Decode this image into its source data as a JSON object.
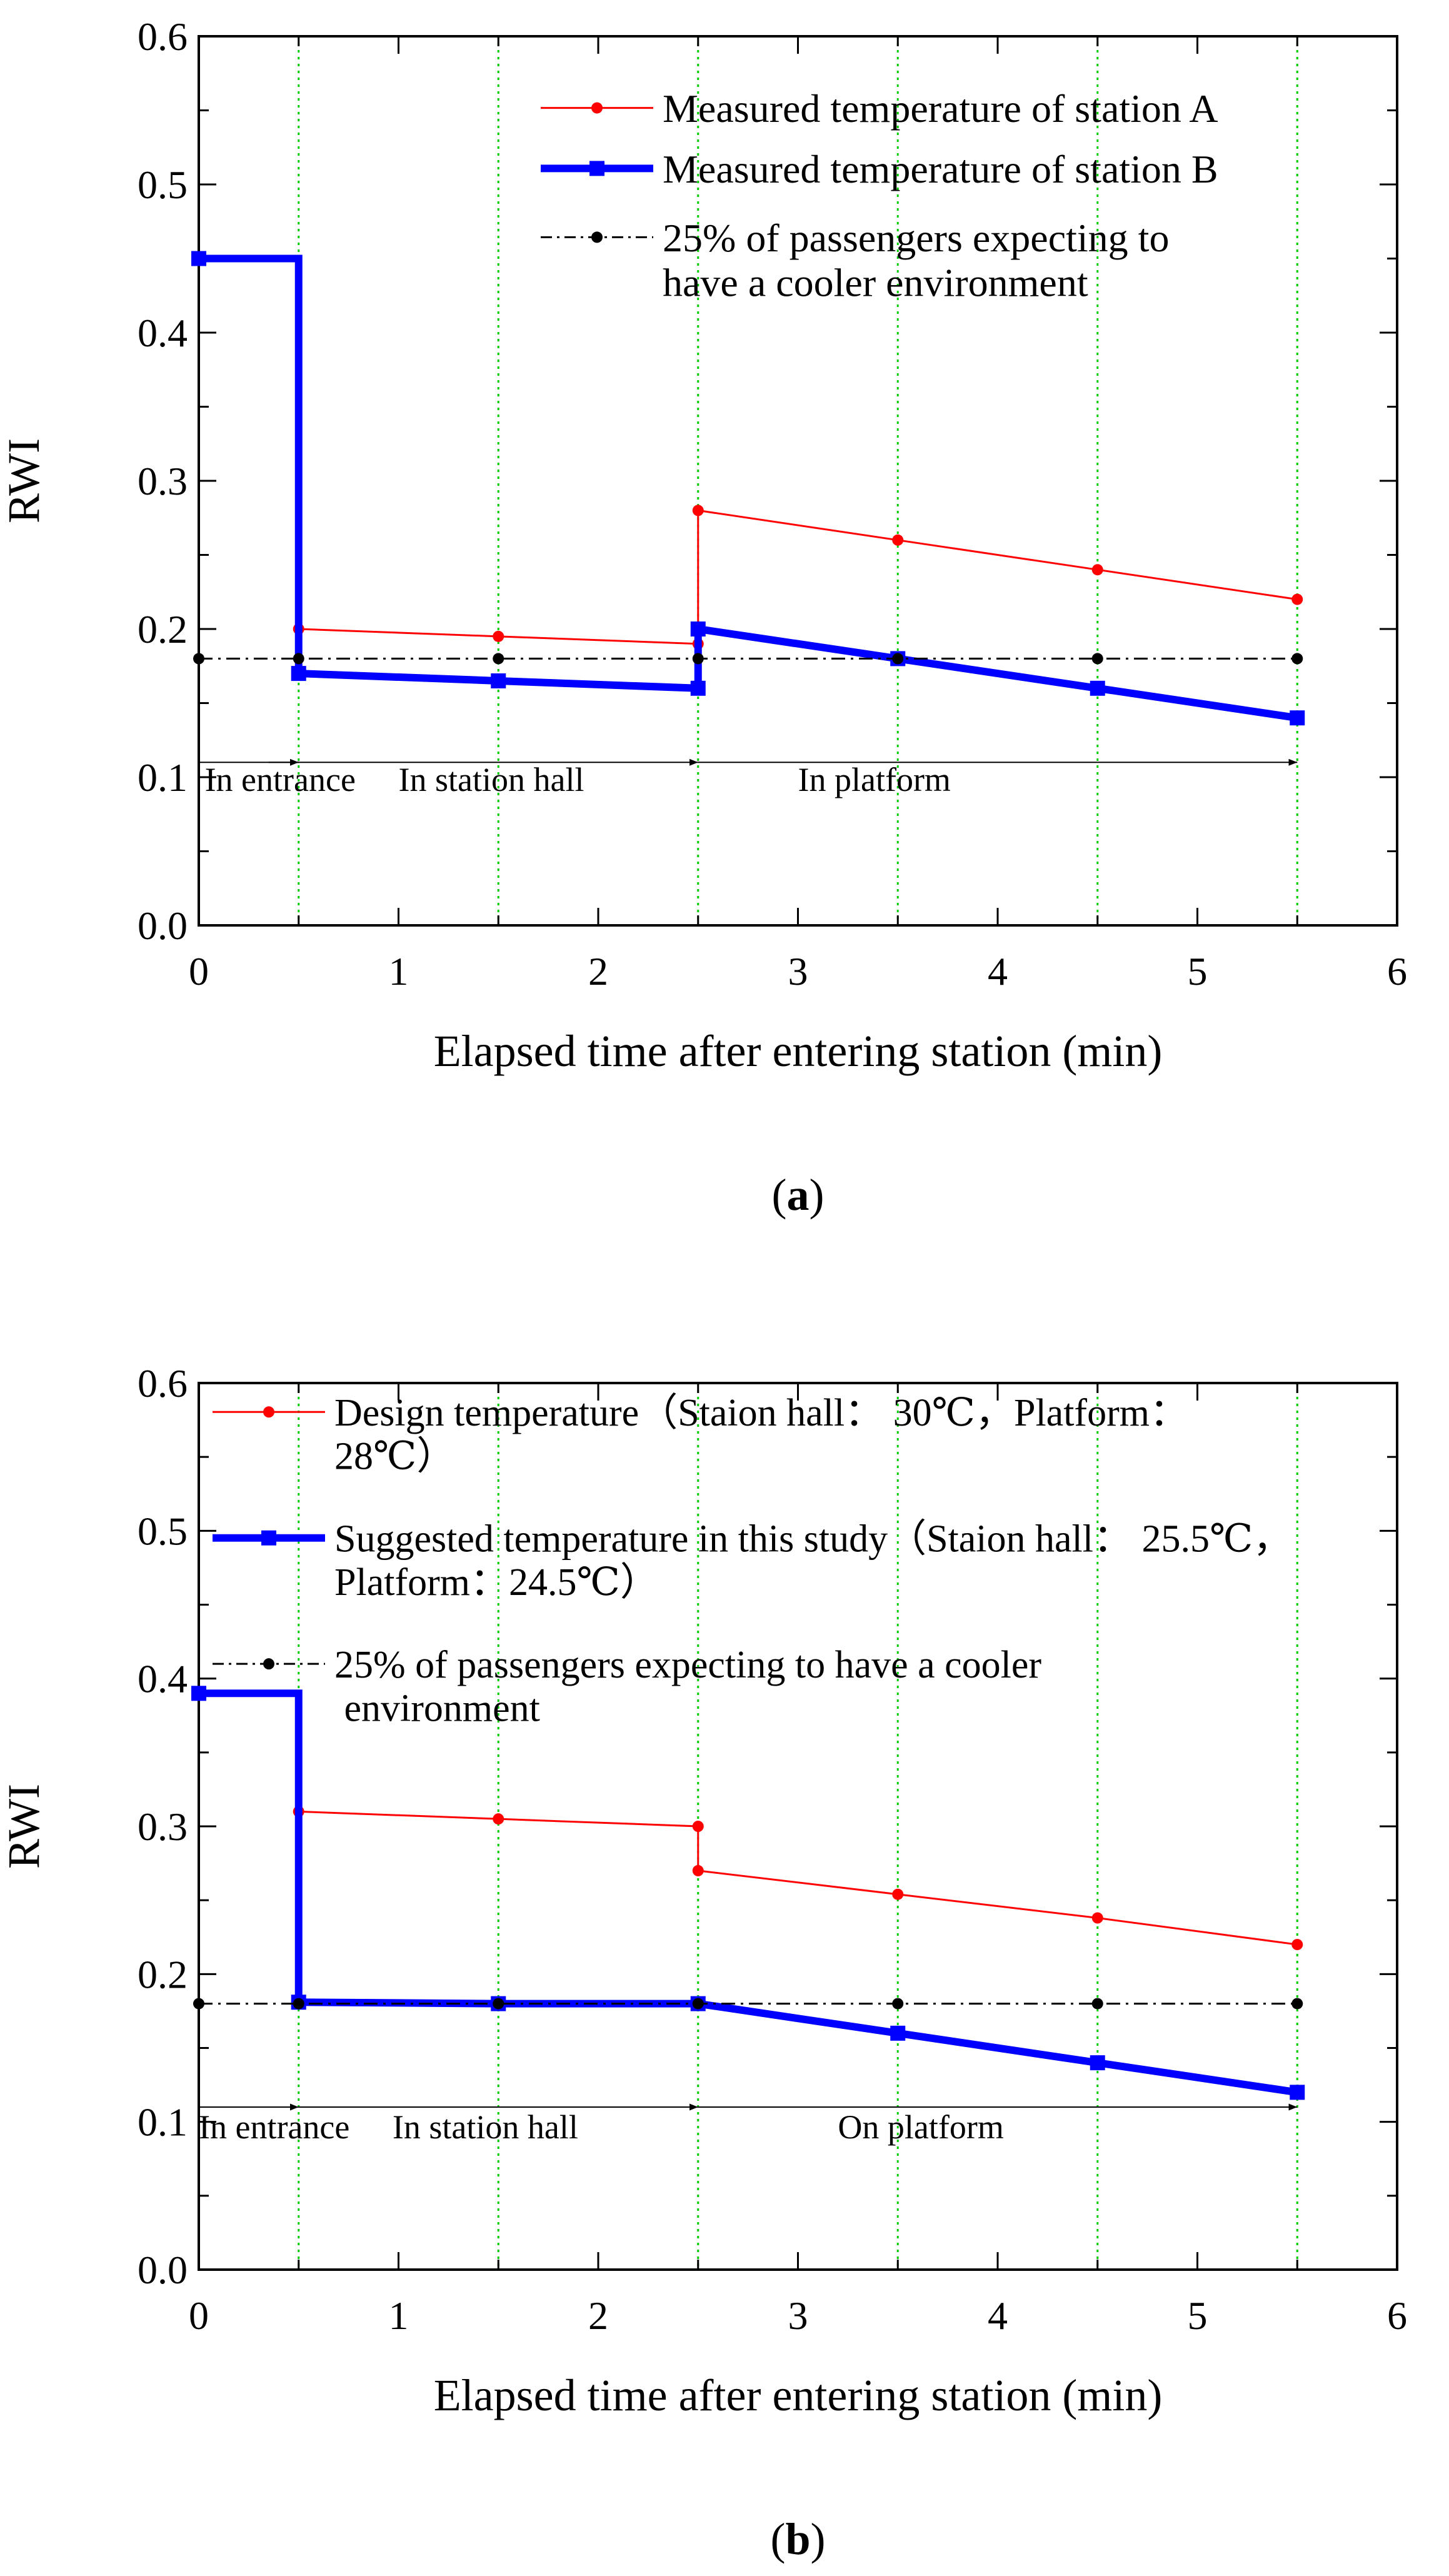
{
  "colors": {
    "series_a": "#ff0000",
    "series_b": "#0000ff",
    "reference": "#000000",
    "gridline": "#00cc00",
    "axis": "#000000"
  },
  "chart_data": [
    {
      "id": "a",
      "type": "line",
      "panel_label": "a",
      "xlabel": "Elapsed time after entering station (min)",
      "ylabel": "RWI",
      "xlim": [
        0,
        6
      ],
      "ylim": [
        0,
        0.6
      ],
      "xticks": [
        "0",
        "1",
        "2",
        "3",
        "4",
        "5",
        "6"
      ],
      "yticks": [
        "0.0",
        "0.1",
        "0.2",
        "0.3",
        "0.4",
        "0.5",
        "0.6"
      ],
      "vertical_gridlines_x": [
        0.5,
        1.5,
        2.5,
        3.5,
        4.5,
        5.5
      ],
      "series": [
        {
          "name": "Measured temperature of station A",
          "style": "thin-circle",
          "x": [
            0.5,
            1.5,
            2.5,
            2.5,
            3.5,
            4.5,
            5.5
          ],
          "y": [
            0.2,
            0.195,
            0.19,
            0.28,
            0.26,
            0.24,
            0.22
          ]
        },
        {
          "name": "Measured temperature of station B",
          "style": "thick-square",
          "x": [
            0,
            0.5,
            0.5,
            1.5,
            2.5,
            2.5,
            3.5,
            4.5,
            5.5
          ],
          "y": [
            0.45,
            0.45,
            0.17,
            0.165,
            0.16,
            0.2,
            0.18,
            0.16,
            0.14
          ]
        },
        {
          "name": "25% of passengers expecting to\nhave a cooler environment",
          "style": "dashdot-circle",
          "x": [
            0,
            0.5,
            1.5,
            2.5,
            3.5,
            4.5,
            5.5
          ],
          "y": [
            0.18,
            0.18,
            0.18,
            0.18,
            0.18,
            0.18,
            0.18
          ]
        }
      ],
      "arrows": [
        {
          "from": 0,
          "to": 2.5,
          "y": 0.11
        },
        {
          "from": 2.5,
          "to": 5.5,
          "y": 0.11
        }
      ],
      "annotations": [
        {
          "text": "In entrance",
          "x": 0.03,
          "y": 0.09
        },
        {
          "text": "In station hall",
          "x": 1.0,
          "y": 0.09
        },
        {
          "text": "In platform",
          "x": 3.0,
          "y": 0.09
        }
      ]
    },
    {
      "id": "b",
      "type": "line",
      "panel_label": "b",
      "xlabel": "Elapsed time after entering station (min)",
      "ylabel": "RWI",
      "xlim": [
        0,
        6
      ],
      "ylim": [
        0,
        0.6
      ],
      "xticks": [
        "0",
        "1",
        "2",
        "3",
        "4",
        "5",
        "6"
      ],
      "yticks": [
        "0.0",
        "0.1",
        "0.2",
        "0.3",
        "0.4",
        "0.5",
        "0.6"
      ],
      "vertical_gridlines_x": [
        0.5,
        1.5,
        2.5,
        3.5,
        4.5,
        5.5
      ],
      "series": [
        {
          "name": "Design temperature（Staion hall： 30℃，Platform：\n28℃）",
          "style": "thin-circle",
          "x": [
            0.5,
            1.5,
            2.5,
            2.5,
            3.5,
            4.5,
            5.5
          ],
          "y": [
            0.31,
            0.305,
            0.3,
            0.27,
            0.254,
            0.238,
            0.22
          ]
        },
        {
          "name": "Suggested temperature in this study（Staion hall： 25.5℃，\nPlatform：24.5℃）",
          "style": "thick-square",
          "x": [
            0,
            0.5,
            0.5,
            1.5,
            2.5,
            3.5,
            4.5,
            5.5
          ],
          "y": [
            0.39,
            0.39,
            0.181,
            0.18,
            0.18,
            0.16,
            0.14,
            0.12
          ]
        },
        {
          "name": "25% of passengers expecting to have  a cooler\n environment",
          "style": "dashdot-circle",
          "x": [
            0,
            0.5,
            1.5,
            2.5,
            3.5,
            4.5,
            5.5
          ],
          "y": [
            0.18,
            0.18,
            0.18,
            0.18,
            0.18,
            0.18,
            0.18
          ]
        }
      ],
      "arrows": [
        {
          "from": 0,
          "to": 2.5,
          "y": 0.11
        },
        {
          "from": 2.5,
          "to": 5.5,
          "y": 0.11
        }
      ],
      "annotations": [
        {
          "text": "In entrance",
          "x": 0.0,
          "y": 0.09
        },
        {
          "text": "In station hall",
          "x": 0.97,
          "y": 0.09
        },
        {
          "text": "On platform",
          "x": 3.2,
          "y": 0.09
        }
      ]
    }
  ]
}
